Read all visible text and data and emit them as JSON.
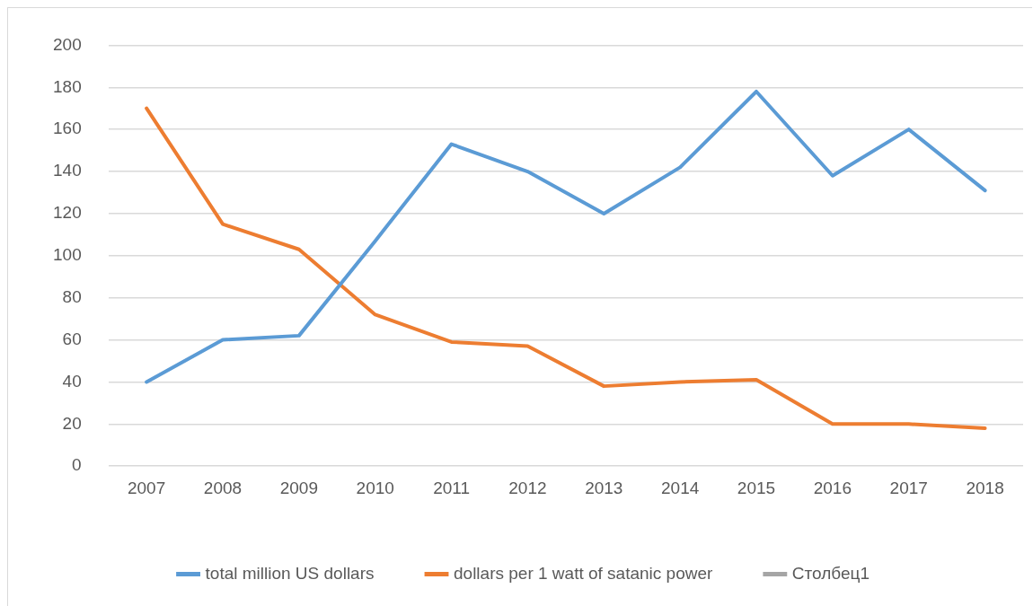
{
  "chart_data": {
    "type": "line",
    "categories": [
      "2007",
      "2008",
      "2009",
      "2010",
      "2011",
      "2012",
      "2013",
      "2014",
      "2015",
      "2016",
      "2017",
      "2018"
    ],
    "series": [
      {
        "name": "total million US dollars",
        "color": "#5b9bd5",
        "values": [
          40,
          60,
          62,
          107,
          153,
          140,
          120,
          142,
          178,
          138,
          160,
          131
        ]
      },
      {
        "name": "dollars per 1 watt of satanic power",
        "color": "#ed7d31",
        "values": [
          170,
          115,
          103,
          72,
          59,
          57,
          38,
          40,
          41,
          20,
          20,
          18
        ]
      },
      {
        "name": "Столбец1",
        "color": "#a5a5a5",
        "values": [
          null,
          null,
          null,
          null,
          null,
          null,
          null,
          null,
          null,
          null,
          null,
          null
        ]
      }
    ],
    "ylim": [
      0,
      200
    ],
    "yticks": [
      0,
      20,
      40,
      60,
      80,
      100,
      120,
      140,
      160,
      180,
      200
    ],
    "grid": "y",
    "legend": "bottom",
    "marker": "none",
    "line_style": "solid"
  }
}
